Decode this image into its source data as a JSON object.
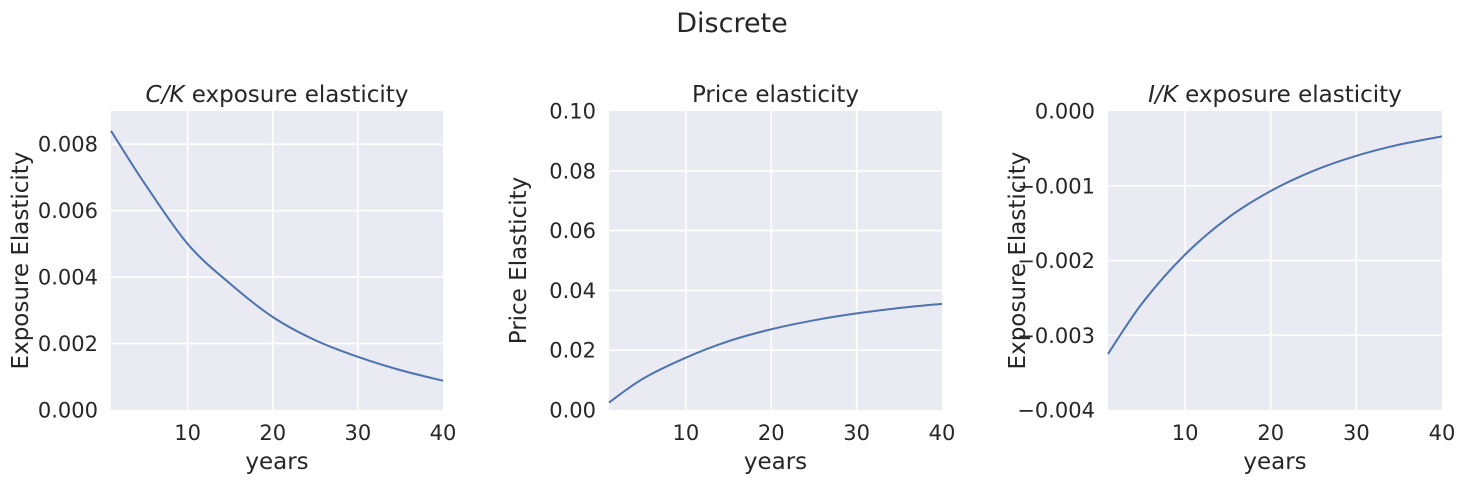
{
  "figure": {
    "title": "Discrete"
  },
  "style": {
    "panel_bg": "#eaeaf2",
    "grid": "#ffffff",
    "line": "#4c72b0",
    "text": "#262626"
  },
  "chart_data": [
    {
      "type": "line",
      "title_italic": "C/K",
      "title_rest": " exposure elasticity",
      "xlabel": "years",
      "ylabel": "Exposure Elasticity",
      "xlim": [
        1,
        40
      ],
      "ylim": [
        0,
        0.009
      ],
      "xticks": [
        10,
        20,
        30,
        40
      ],
      "xtick_labels": [
        "10",
        "20",
        "30",
        "40"
      ],
      "yticks": [
        0,
        0.002,
        0.004,
        0.006,
        0.008
      ],
      "ytick_labels": [
        "0.000",
        "0.002",
        "0.004",
        "0.006",
        "0.008"
      ],
      "grid": true,
      "series": [
        {
          "x": [
            1,
            5,
            10,
            15,
            20,
            25,
            30,
            35,
            40
          ],
          "y": [
            0.0084,
            0.0068,
            0.005,
            0.0038,
            0.0028,
            0.0021,
            0.0016,
            0.0012,
            0.00088
          ]
        }
      ]
    },
    {
      "type": "line",
      "title_italic": "",
      "title_rest": "Price elasticity",
      "xlabel": "years",
      "ylabel": "Price Elasticity",
      "xlim": [
        1,
        40
      ],
      "ylim": [
        0,
        0.1
      ],
      "xticks": [
        10,
        20,
        30,
        40
      ],
      "xtick_labels": [
        "10",
        "20",
        "30",
        "40"
      ],
      "yticks": [
        0,
        0.02,
        0.04,
        0.06,
        0.08,
        0.1
      ],
      "ytick_labels": [
        "0.00",
        "0.02",
        "0.04",
        "0.06",
        "0.08",
        "0.10"
      ],
      "grid": true,
      "series": [
        {
          "x": [
            1,
            5,
            10,
            15,
            20,
            25,
            30,
            35,
            40
          ],
          "y": [
            0.0025,
            0.0105,
            0.0175,
            0.023,
            0.027,
            0.03,
            0.0323,
            0.0341,
            0.0355
          ]
        }
      ]
    },
    {
      "type": "line",
      "title_italic": "I/K",
      "title_rest": " exposure elasticity",
      "xlabel": "years",
      "ylabel": "Exposure Elasticity",
      "xlim": [
        1,
        40
      ],
      "ylim": [
        -0.004,
        0
      ],
      "xticks": [
        10,
        20,
        30,
        40
      ],
      "xtick_labels": [
        "10",
        "20",
        "30",
        "40"
      ],
      "yticks": [
        -0.004,
        -0.003,
        -0.002,
        -0.001,
        0
      ],
      "ytick_labels": [
        "−0.004",
        "−0.003",
        "−0.002",
        "−0.001",
        "0.000"
      ],
      "grid": true,
      "series": [
        {
          "x": [
            1,
            5,
            10,
            15,
            20,
            25,
            30,
            35,
            40
          ],
          "y": [
            -0.00325,
            -0.00257,
            -0.00192,
            -0.00143,
            -0.00107,
            -0.0008,
            -0.0006,
            -0.00045,
            -0.00034
          ]
        }
      ]
    }
  ]
}
